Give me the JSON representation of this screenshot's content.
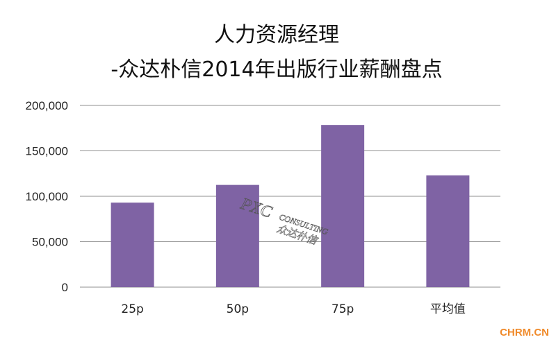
{
  "chart_data": {
    "type": "bar",
    "title": [
      "人力资源经理",
      "-众达朴信2014年出版行业薪酬盘点"
    ],
    "categories": [
      "25p",
      "50p",
      "75p",
      "平均值"
    ],
    "values": [
      93000,
      112500,
      178500,
      123000
    ],
    "ylim": [
      0,
      200000
    ],
    "yticks": [
      0,
      50000,
      100000,
      150000,
      200000
    ],
    "ytick_labels": [
      "0",
      "50,000",
      "100,000",
      "150,000",
      "200,000"
    ],
    "grid": true,
    "legend": "none",
    "bar_color": "#7f63a4"
  },
  "watermark": {
    "logo": "PXC",
    "text_en": "CONSULTING",
    "text_cn": "众达朴信"
  },
  "site_label": "CHRM.CN",
  "colors": {
    "grid": "#8f8f8f",
    "site": "#f08a2a"
  }
}
